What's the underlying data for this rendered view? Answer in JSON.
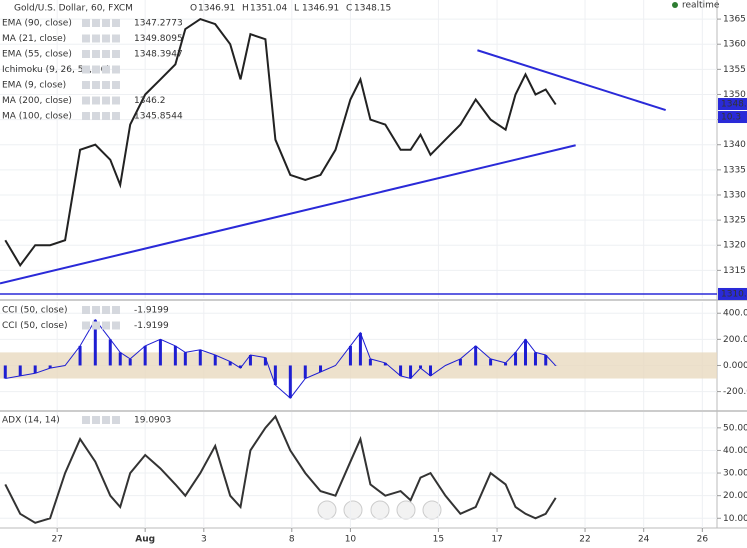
{
  "chart_data": [
    {
      "type": "line",
      "title": "Gold/U.S. Dollar, 60, FXCM",
      "ohlc": [
        {
          "key": "O",
          "value": "1346.91"
        },
        {
          "key": "H",
          "value": "1351.04"
        },
        {
          "key": "L",
          "value": "1346.91"
        },
        {
          "key": "C",
          "value": "1348.15"
        }
      ],
      "indicators": [
        {
          "label": "EMA (90, close)",
          "value": "1347.2773",
          "color": "#9c27b0"
        },
        {
          "label": "MA (21, close)",
          "value": "1349.8095",
          "color": "#3f51b5"
        },
        {
          "label": "EMA (55, close)",
          "value": "1348.3947",
          "color": "#283593"
        },
        {
          "label": "Ichimoku (9, 26, 52, 26)",
          "value": null,
          "color": "#888888"
        },
        {
          "label": "EMA (9, close)",
          "value": null,
          "color": "#888888"
        },
        {
          "label": "MA (200, close)",
          "value": "1346.2",
          "color": "#1a237e"
        },
        {
          "label": "MA (100, close)",
          "value": "1345.8544",
          "color": "#1a237e"
        }
      ],
      "realtime": "realtime",
      "x": [
        -1.77,
        -1.26,
        -0.75,
        -0.24,
        0.27,
        0.78,
        1.3,
        1.81,
        2.15,
        2.49,
        3.0,
        3.52,
        4.03,
        4.37,
        4.88,
        5.39,
        5.9,
        6.25,
        6.59,
        7.1,
        7.44,
        7.95,
        8.46,
        8.98,
        9.49,
        10.0,
        10.34,
        10.68,
        11.19,
        11.71,
        12.05,
        12.39,
        12.73,
        13.24,
        13.75,
        14.27,
        14.78,
        15.29,
        15.63,
        15.97,
        16.31,
        16.66,
        17.0
      ],
      "series": [
        {
          "name": "close",
          "color": "#222222",
          "values": [
            1321,
            1316,
            1320,
            1320,
            1321,
            1339,
            1340,
            1337,
            1332,
            1344,
            1350,
            1353,
            1356,
            1363,
            1365,
            1364,
            1360,
            1353,
            1362,
            1361,
            1341,
            1334,
            1333,
            1334,
            1339,
            1349,
            1353,
            1345,
            1344,
            1339,
            1339,
            1342,
            1338,
            1341,
            1344,
            1349,
            1345,
            1343,
            1350,
            1354,
            1350,
            1351,
            1348
          ]
        }
      ],
      "trendlines": [
        {
          "x": [
            14.33,
            20.75
          ],
          "y": [
            1358.8,
            1346.9
          ],
          "color": "#2a2ad8"
        },
        {
          "x": [
            -1.95,
            17.68
          ],
          "y": [
            1312.4,
            1339.9
          ],
          "color": "#2a2ad8"
        }
      ],
      "hline": {
        "value": 1310.3,
        "label": "1310.3",
        "color": "#2a2ad8"
      },
      "price_labels": [
        {
          "value": 1348.1,
          "label": "1348.1"
        }
      ],
      "timer_label": "10.3",
      "xlim": [
        -1.95,
        22.5
      ],
      "xticks": [
        {
          "value": 0,
          "label": "27"
        },
        {
          "value": 3,
          "label": "Aug"
        },
        {
          "value": 5,
          "label": "3"
        },
        {
          "value": 8,
          "label": "8"
        },
        {
          "value": 10,
          "label": "10"
        },
        {
          "value": 13,
          "label": "15"
        },
        {
          "value": 15,
          "label": "17"
        },
        {
          "value": 18,
          "label": "22"
        },
        {
          "value": 20,
          "label": "24"
        },
        {
          "value": 22,
          "label": "26"
        }
      ],
      "ylim": [
        1309.5,
        1368.8
      ],
      "yticks": [
        1315,
        1320,
        1325,
        1330,
        1335,
        1340,
        1345,
        1350,
        1355,
        1360,
        1365
      ]
    },
    {
      "type": "histogram-line",
      "legend": [
        {
          "label": "CCI (50, close)",
          "value": "-1.9199"
        },
        {
          "label": "CCI (50, close)",
          "value": "-1.9199"
        }
      ],
      "band": [
        -100,
        100
      ],
      "series": [
        {
          "color": "#1e1ed2",
          "values": [
            -100,
            -80,
            -60,
            -20,
            0,
            150,
            350,
            200,
            100,
            50,
            150,
            200,
            150,
            100,
            120,
            80,
            30,
            -20,
            80,
            60,
            -150,
            -250,
            -100,
            -50,
            0,
            150,
            250,
            50,
            20,
            -80,
            -100,
            -20,
            -80,
            0,
            50,
            150,
            50,
            20,
            100,
            200,
            100,
            80,
            -2
          ]
        }
      ],
      "ylim": [
        -341,
        486
      ],
      "yticks": [
        {
          "value": 400,
          "label": "400.00"
        },
        {
          "value": 200,
          "label": "200.00"
        },
        {
          "value": 0,
          "label": "0.0000"
        },
        {
          "value": -200,
          "label": "-200.0"
        }
      ]
    },
    {
      "type": "line",
      "legend": [
        {
          "label": "ADX (14, 14)",
          "value": "19.0903"
        }
      ],
      "series": [
        {
          "color": "#333333",
          "values": [
            25,
            12,
            8,
            10,
            30,
            45,
            35,
            20,
            15,
            30,
            38,
            32,
            25,
            20,
            30,
            42,
            20,
            15,
            40,
            50,
            55,
            40,
            30,
            22,
            20,
            35,
            45,
            25,
            20,
            22,
            18,
            28,
            30,
            20,
            12,
            15,
            30,
            25,
            15,
            12,
            10,
            12,
            19
          ]
        }
      ],
      "ylim": [
        5.7,
        57
      ],
      "yticks": [
        {
          "value": 50,
          "label": "50.00"
        },
        {
          "value": 40,
          "label": "40.00"
        },
        {
          "value": 30,
          "label": "30.00"
        },
        {
          "value": 20,
          "label": "20.00"
        },
        {
          "value": 10,
          "label": "10.00"
        }
      ]
    }
  ]
}
